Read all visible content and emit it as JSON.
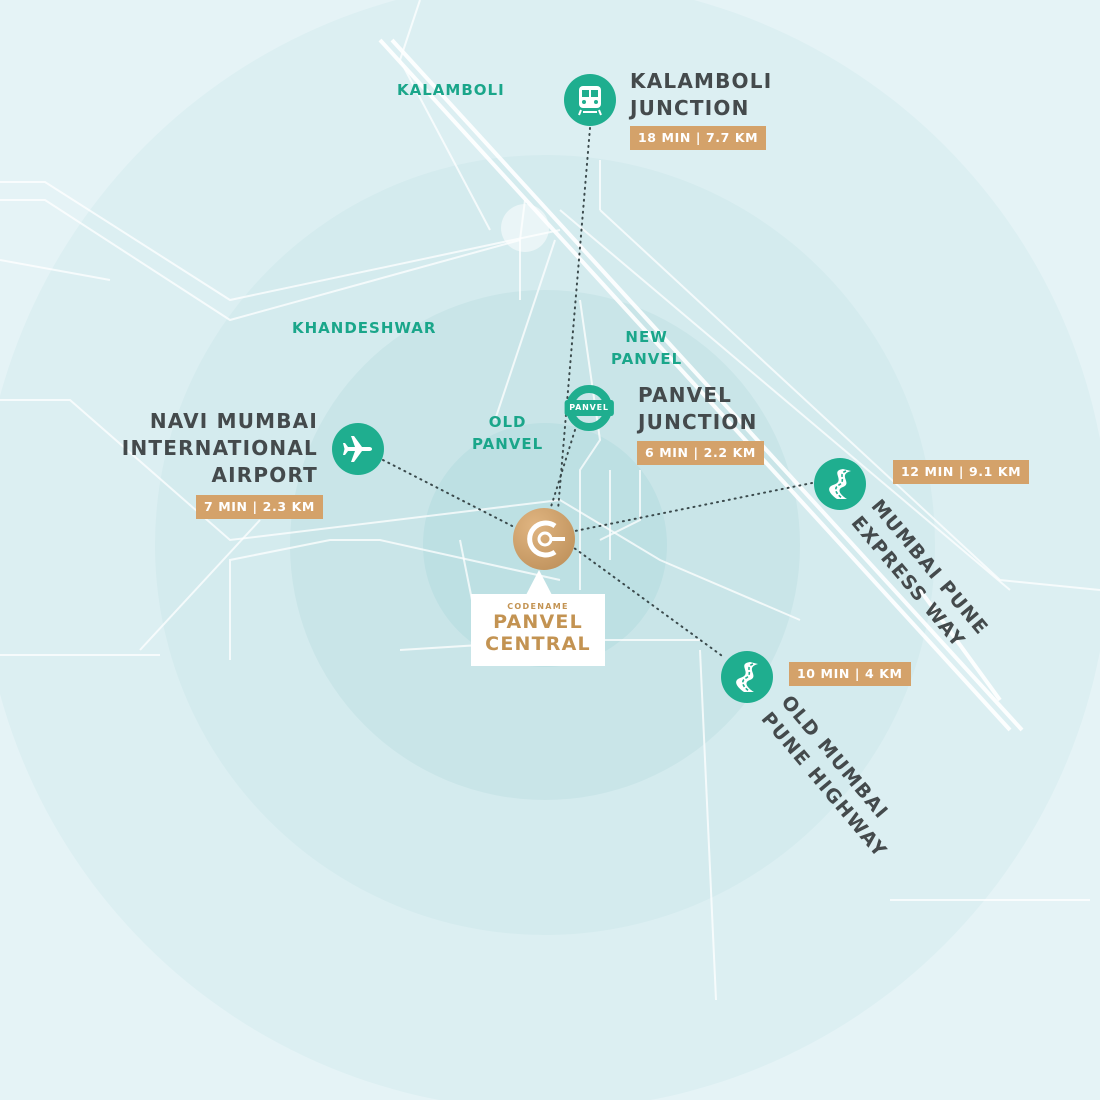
{
  "colors": {
    "background": "#e5f3f6",
    "ring_light": "#d6ecef",
    "ring_mid": "#c6e4e7",
    "ring_inner": "#b4dbde",
    "accent_green": "#1fae8f",
    "badge_gold": "#d4a26a",
    "title_dark": "#444a4c",
    "logo_gold": "#c39352"
  },
  "areas": {
    "kalamboli": "KALAMBOLI",
    "khandeshwar": "KHANDESHWAR",
    "new_panvel": [
      "NEW",
      "PANVEL"
    ],
    "old_panvel": [
      "OLD",
      "PANVEL"
    ]
  },
  "destinations": {
    "kalamboli_junction": {
      "icon": "train-icon",
      "title": [
        "KALAMBOLI",
        "JUNCTION"
      ],
      "distance": "18 MIN | 7.7 KM"
    },
    "panvel_junction": {
      "icon": "panvel-station-icon",
      "icon_label": "PANVEL",
      "title": [
        "PANVEL",
        "JUNCTION"
      ],
      "distance": "6 MIN | 2.2 KM"
    },
    "airport": {
      "icon": "airplane-icon",
      "title": [
        "NAVI MUMBAI",
        "INTERNATIONAL",
        "AIRPORT"
      ],
      "distance": "7 MIN | 2.3 KM"
    },
    "expressway": {
      "icon": "road-icon",
      "title": [
        "MUMBAI PUNE",
        "EXPRESS WAY"
      ],
      "distance": "12 MIN | 9.1 KM"
    },
    "old_highway": {
      "icon": "road-icon",
      "title": [
        "OLD MUMBAI",
        "PUNE HIGHWAY"
      ],
      "distance": "10 MIN | 4 KM"
    }
  },
  "project": {
    "icon": "project-logo-icon",
    "codename": "CODENAME",
    "name_line1": "PANVEL",
    "name_line2": "CENTRAL"
  }
}
